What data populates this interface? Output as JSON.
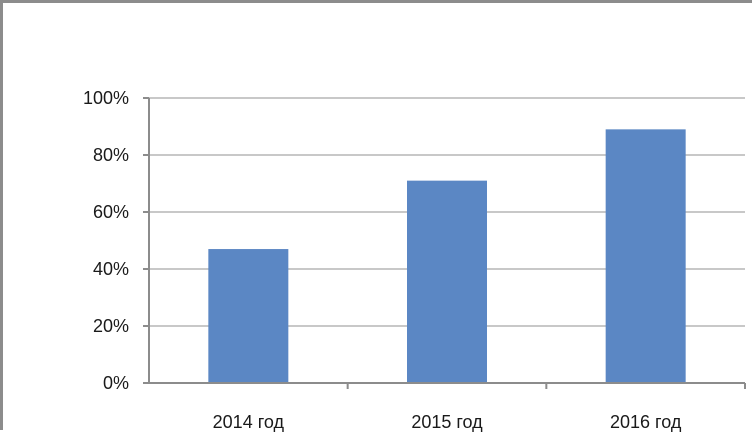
{
  "chart_data": {
    "type": "bar",
    "categories": [
      "2014 год",
      "2015 год",
      "2016 год"
    ],
    "values": [
      47,
      71,
      89
    ],
    "y_ticks": [
      0,
      20,
      40,
      60,
      80,
      100
    ],
    "y_tick_labels": [
      "0%",
      "20%",
      "40%",
      "60%",
      "80%",
      "100%"
    ],
    "ylim": [
      0,
      100
    ],
    "title": "",
    "xlabel": "",
    "ylabel": "",
    "grid": true,
    "legend": "none",
    "bar_color": "#5b87c4",
    "grid_color": "#c8c8c8",
    "frame_color": "#8c8c8c"
  }
}
